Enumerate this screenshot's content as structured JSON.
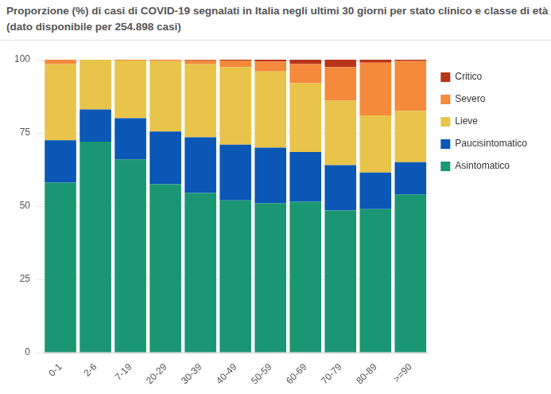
{
  "chart_data": {
    "type": "bar",
    "title": "Proporzione (%) di casi di COVID-19 segnalati in Italia negli ultimi 30 giorni per stato clinico e classe di età",
    "subtitle": "(dato disponibile per 254.898 casi)",
    "categories": [
      "0-1",
      "2-6",
      "7-19",
      "20-29",
      "30-39",
      "40-49",
      "50-59",
      "60-69",
      "70-79",
      "80-89",
      ">=90"
    ],
    "stacked": true,
    "legend": "right",
    "grid": true,
    "ylim": [
      0,
      100
    ],
    "yticks": [
      0,
      25,
      50,
      75,
      100
    ],
    "series": [
      {
        "name": "Asintomatico",
        "color": "#1b9672",
        "values": [
          58,
          72,
          66,
          57.5,
          54.5,
          52,
          51,
          51.5,
          48.5,
          49,
          54
        ]
      },
      {
        "name": "Paucisintomatico",
        "color": "#0a57b5",
        "values": [
          14.5,
          11,
          14,
          18,
          19,
          19,
          19,
          17,
          15.5,
          12.5,
          11
        ]
      },
      {
        "name": "Lieve",
        "color": "#e8c44a",
        "values": [
          26,
          17,
          19.7,
          24,
          25,
          26.5,
          26,
          23.5,
          22,
          19.5,
          17.5
        ]
      },
      {
        "name": "Severo",
        "color": "#f58a3c",
        "values": [
          1.5,
          0,
          0.3,
          0.5,
          1.3,
          2.2,
          3.4,
          6.5,
          11.5,
          18,
          17
        ]
      },
      {
        "name": "Critico",
        "color": "#b8351a",
        "values": [
          0,
          0,
          0,
          0,
          0.2,
          0.3,
          0.6,
          1.5,
          2.5,
          1,
          0.5
        ]
      }
    ]
  }
}
